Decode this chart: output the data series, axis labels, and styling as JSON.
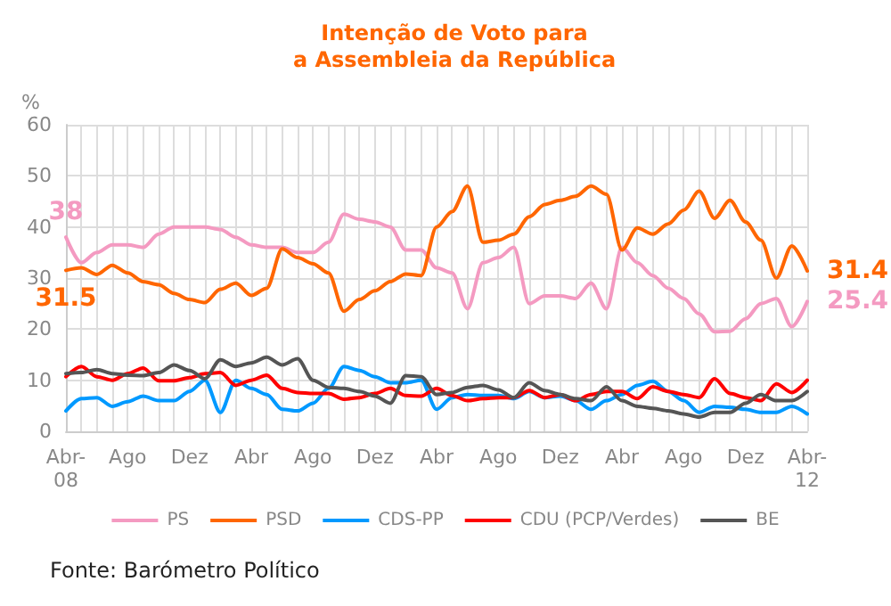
{
  "chart_data": {
    "type": "line",
    "title": "Intenção de Voto para\na Assembleia da República",
    "ylabel": "%",
    "categories": [
      "Abr-08",
      null,
      null,
      null,
      "Ago",
      null,
      null,
      null,
      "Dez",
      null,
      null,
      null,
      "Abr",
      null,
      null,
      null,
      "Ago",
      null,
      null,
      null,
      "Dez",
      null,
      null,
      null,
      "Abr",
      null,
      null,
      null,
      "Ago",
      null,
      null,
      null,
      "Dez",
      null,
      null,
      null,
      "Abr",
      null,
      null,
      null,
      "Ago",
      null,
      null,
      null,
      "Dez",
      null,
      null,
      null,
      "Abr-12"
    ],
    "series": [
      {
        "name": "PS",
        "color": "#f49ac1",
        "values": [
          38,
          33,
          35,
          36.5,
          36.5,
          36,
          38.6,
          40,
          40,
          40,
          39.5,
          38,
          36.5,
          36,
          36,
          35,
          35,
          37,
          42.5,
          41.5,
          41,
          40,
          35.5,
          35.5,
          32,
          31,
          24,
          33,
          34,
          36,
          25,
          26.5,
          26.5,
          26,
          29,
          24,
          36,
          33,
          30.5,
          28,
          26,
          23,
          19.5,
          19.6,
          22,
          25,
          26,
          20.5,
          25.4
        ],
        "value_labels": [
          "38",
          null,
          null,
          null,
          null,
          null,
          null,
          null,
          null,
          null,
          null,
          null,
          null,
          null,
          null,
          null,
          null,
          null,
          null,
          null,
          null,
          null,
          null,
          null,
          null,
          null,
          null,
          null,
          null,
          null,
          null,
          null,
          null,
          null,
          null,
          null,
          null,
          null,
          null,
          null,
          null,
          null,
          null,
          null,
          null,
          null,
          null,
          null,
          "25.4"
        ]
      },
      {
        "name": "PSD",
        "color": "#ff6600",
        "values": [
          31.5,
          32,
          30.7,
          32.5,
          31,
          29.3,
          28.7,
          27,
          25.8,
          25.2,
          27.8,
          29,
          26.6,
          28,
          35.7,
          34,
          32.8,
          31,
          23.5,
          25.8,
          27.5,
          29.3,
          30.8,
          30.5,
          40,
          43,
          48,
          37,
          37.4,
          38.6,
          42,
          44.4,
          45.2,
          46,
          48,
          46.4,
          35.5,
          39.8,
          38.6,
          40.6,
          43.3,
          47,
          41.7,
          45.2,
          41,
          37.4,
          30,
          36.3,
          31.4
        ],
        "value_labels": [
          "31.5",
          null,
          null,
          null,
          null,
          null,
          null,
          null,
          null,
          null,
          null,
          null,
          null,
          null,
          null,
          null,
          null,
          null,
          null,
          null,
          null,
          null,
          null,
          null,
          null,
          null,
          null,
          null,
          null,
          null,
          null,
          null,
          null,
          null,
          null,
          null,
          null,
          null,
          null,
          null,
          null,
          null,
          null,
          null,
          null,
          null,
          null,
          null,
          "31.4"
        ]
      },
      {
        "name": "CDS-PP",
        "color": "#0099ff",
        "values": [
          4,
          6.4,
          6.6,
          4.9,
          5.8,
          6.9,
          6,
          6,
          7.8,
          10,
          3.7,
          10,
          8.4,
          7.2,
          4.3,
          4,
          5.5,
          8.4,
          12.7,
          11.9,
          10.7,
          9.5,
          9.5,
          10,
          4.3,
          6.6,
          7.2,
          7,
          7,
          6.4,
          7.8,
          6.6,
          6.9,
          6,
          4.3,
          6,
          7.2,
          9,
          9.8,
          7.8,
          6,
          3.7,
          4.9,
          4.7,
          4.3,
          3.7,
          3.7,
          4.9,
          3.4
        ]
      },
      {
        "name": "CDU (PCP/Verdes)",
        "color": "#ff0000",
        "values": [
          10.7,
          12.7,
          10.7,
          10,
          11.3,
          12.4,
          9.9,
          9.9,
          10.5,
          11.3,
          11.5,
          9,
          10,
          11,
          8.4,
          7.6,
          7.4,
          7.4,
          6.3,
          6.6,
          7.4,
          8.4,
          7,
          6.9,
          8.4,
          7,
          6,
          6.4,
          6.6,
          6.6,
          8,
          6.6,
          7.2,
          6,
          7.2,
          7.8,
          7.8,
          6.4,
          8.7,
          7.8,
          7.2,
          6.6,
          10.3,
          7.4,
          6.6,
          6,
          9.3,
          7.6,
          10
        ]
      },
      {
        "name": "BE",
        "color": "#555555",
        "values": [
          11.3,
          11.5,
          12.1,
          11.3,
          11,
          10.9,
          11.5,
          13,
          11.9,
          10.3,
          14,
          12.7,
          13.4,
          14.5,
          13,
          14.2,
          10,
          8.6,
          8.4,
          7.8,
          6.9,
          5.5,
          10.9,
          10.7,
          7.2,
          7.6,
          8.6,
          9,
          8.1,
          6.6,
          9.5,
          8,
          7.2,
          6.4,
          6,
          8.7,
          6,
          4.9,
          4.5,
          4,
          3.4,
          2.8,
          3.7,
          3.7,
          5.5,
          7.2,
          6,
          6,
          7.8
        ]
      }
    ],
    "ylim": [
      0,
      60
    ],
    "yticks": [
      0,
      10,
      20,
      30,
      40,
      50,
      60
    ],
    "grid": true,
    "legend": "bottom",
    "marker": "none",
    "line_style": "solid",
    "annotations": [
      "Fonte: Barómetro Político"
    ]
  }
}
